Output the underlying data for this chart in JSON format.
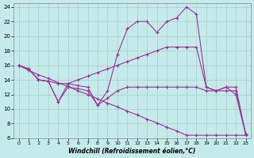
{
  "xlabel": "Windchill (Refroidissement éolien,°C)",
  "background_color": "#c5eaea",
  "grid_color": "#aacccc",
  "line_color": "#993399",
  "xlim": [
    -0.5,
    23.5
  ],
  "ylim": [
    6,
    24.5
  ],
  "xticks": [
    0,
    1,
    2,
    3,
    4,
    5,
    6,
    7,
    8,
    9,
    10,
    11,
    12,
    13,
    14,
    15,
    16,
    17,
    18,
    19,
    20,
    21,
    22,
    23
  ],
  "yticks": [
    6,
    8,
    10,
    12,
    14,
    16,
    18,
    20,
    22,
    24
  ],
  "line_spike_y": [
    16,
    15.5,
    14.0,
    13.8,
    11.0,
    13.5,
    13.2,
    13.0,
    10.5,
    12.5,
    17.5,
    21.0,
    22.0,
    22.0,
    20.5,
    22.0,
    22.5,
    24.0,
    23.0,
    13.0,
    12.5,
    13.0,
    12.0,
    6.5
  ],
  "line_upper_y": [
    16,
    15.5,
    14.0,
    13.8,
    13.5,
    13.5,
    14.0,
    14.5,
    15.0,
    15.5,
    16.0,
    16.5,
    17.0,
    17.5,
    18.0,
    18.5,
    18.5,
    18.5,
    18.5,
    13.0,
    12.5,
    12.5,
    12.5,
    6.5
  ],
  "line_mid_y": [
    16,
    15.5,
    14.0,
    13.8,
    11.0,
    13.0,
    12.8,
    12.5,
    10.5,
    11.5,
    12.5,
    13.0,
    13.0,
    13.0,
    13.0,
    13.0,
    13.0,
    13.0,
    13.0,
    12.5,
    12.5,
    13.0,
    13.0,
    6.5
  ],
  "line_diag_y": [
    16,
    15.3,
    14.7,
    14.2,
    13.6,
    13.1,
    12.5,
    12.0,
    11.4,
    10.8,
    10.3,
    9.7,
    9.2,
    8.6,
    8.1,
    7.5,
    7.0,
    6.4,
    6.4,
    6.4,
    6.4,
    6.4,
    6.4,
    6.4
  ]
}
